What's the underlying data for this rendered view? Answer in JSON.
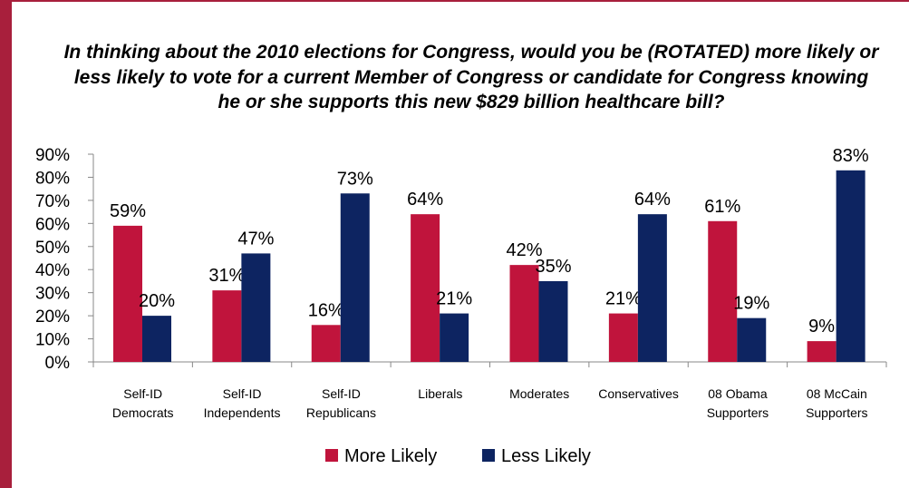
{
  "chart_data": {
    "type": "bar",
    "title": "In thinking about the 2010 elections for Congress, would you be (ROTATED) more likely or less likely to vote for a current Member of Congress or candidate for Congress knowing he or she supports this new $829 billion healthcare bill?",
    "categories": [
      [
        "Self-ID",
        "Democrats"
      ],
      [
        "Self-ID",
        "Independents"
      ],
      [
        "Self-ID",
        "Republicans"
      ],
      [
        "Liberals"
      ],
      [
        "Moderates"
      ],
      [
        "Conservatives"
      ],
      [
        "08 Obama",
        "Supporters"
      ],
      [
        "08 McCain",
        "Supporters"
      ]
    ],
    "series": [
      {
        "name": "More Likely",
        "color": "#c0143c",
        "values": [
          59,
          31,
          16,
          64,
          42,
          21,
          61,
          9
        ]
      },
      {
        "name": "Less Likely",
        "color": "#0d2461",
        "values": [
          20,
          47,
          73,
          21,
          35,
          64,
          19,
          83
        ]
      }
    ],
    "value_format": "{v}%",
    "ylim": [
      0,
      90
    ],
    "yticks": [
      "0%",
      "10%",
      "20%",
      "30%",
      "40%",
      "50%",
      "60%",
      "70%",
      "80%",
      "90%"
    ],
    "xlabel": "",
    "ylabel": "",
    "grid": false,
    "legend_position": "bottom"
  },
  "colors": {
    "frame": "#a81f3c"
  }
}
